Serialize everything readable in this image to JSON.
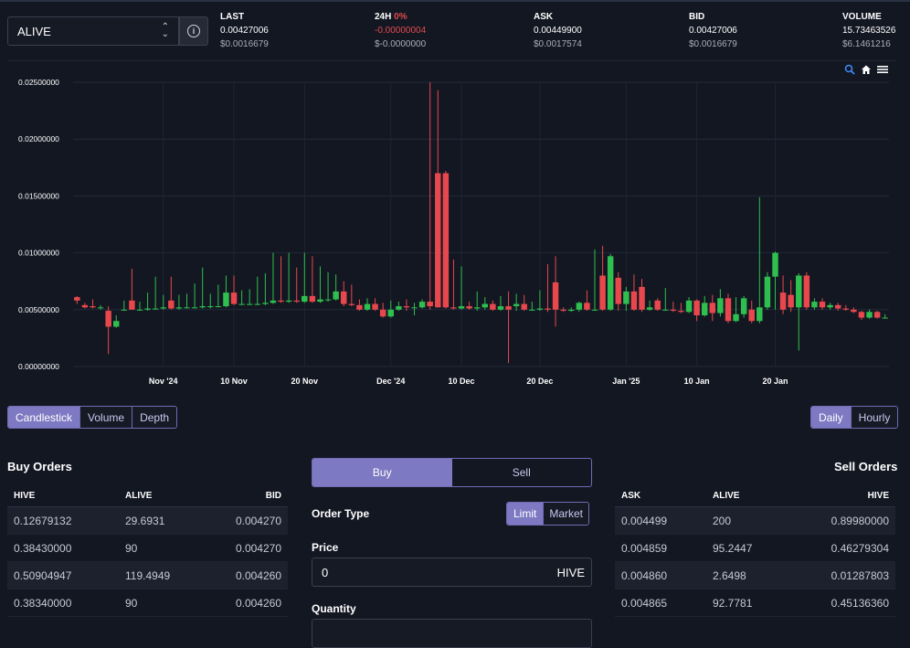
{
  "header": {
    "pair": "ALIVE",
    "last": {
      "label": "LAST",
      "value": "0.00427006",
      "usd": "$0.0016679"
    },
    "change": {
      "label": "24H",
      "pct": "0%",
      "value": "-0.00000004",
      "usd": "$-0.0000000"
    },
    "ask": {
      "label": "ASK",
      "value": "0.00449900",
      "usd": "$0.0017574"
    },
    "bid": {
      "label": "BID",
      "value": "0.00427006",
      "usd": "$0.0016679"
    },
    "volume": {
      "label": "VOLUME",
      "value": "15.73463526",
      "usd": "$6.1461216"
    }
  },
  "chart_tools": [
    "zoom-icon",
    "home-icon",
    "menu-icon"
  ],
  "chart_data": {
    "type": "candlestick",
    "y_ticks": [
      "0.02500000",
      "0.02000000",
      "0.01500000",
      "0.01000000",
      "0.00500000",
      "0.00000000"
    ],
    "ylim": [
      0,
      0.025
    ],
    "x_ticks": [
      "Nov '24",
      "10 Nov",
      "20 Nov",
      "Dec '24",
      "10 Dec",
      "20 Dec",
      "Jan '25",
      "10 Jan",
      "20 Jan"
    ],
    "colors": {
      "up": "#2fbf4f",
      "down": "#e8484d"
    },
    "candles": [
      [
        0.0061,
        0.0058,
        0.0062,
        0.0055
      ],
      [
        0.0054,
        0.0052,
        0.0056,
        0.0051
      ],
      [
        0.0053,
        0.0052,
        0.0059,
        0.0051
      ],
      [
        0.0052,
        0.0052,
        0.0054,
        0.005
      ],
      [
        0.0049,
        0.0035,
        0.0053,
        0.0011
      ],
      [
        0.0035,
        0.004,
        0.0045,
        0.0034
      ],
      [
        0.005,
        0.005,
        0.0058,
        0.0049
      ],
      [
        0.0058,
        0.005,
        0.0086,
        0.005
      ],
      [
        0.005,
        0.005,
        0.0057,
        0.0049
      ],
      [
        0.005,
        0.0051,
        0.0065,
        0.0049
      ],
      [
        0.0051,
        0.0051,
        0.0079,
        0.005
      ],
      [
        0.0051,
        0.0052,
        0.0063,
        0.005
      ],
      [
        0.0058,
        0.0051,
        0.0079,
        0.005
      ],
      [
        0.0051,
        0.0052,
        0.0063,
        0.005
      ],
      [
        0.0052,
        0.0052,
        0.0064,
        0.0051
      ],
      [
        0.0052,
        0.0052,
        0.0073,
        0.0051
      ],
      [
        0.0052,
        0.0053,
        0.0087,
        0.0051
      ],
      [
        0.0053,
        0.0053,
        0.0064,
        0.0051
      ],
      [
        0.0053,
        0.0053,
        0.0072,
        0.0052
      ],
      [
        0.0053,
        0.0065,
        0.008,
        0.0052
      ],
      [
        0.0065,
        0.0055,
        0.008,
        0.0054
      ],
      [
        0.0055,
        0.0055,
        0.0067,
        0.0054
      ],
      [
        0.0055,
        0.0055,
        0.0068,
        0.0054
      ],
      [
        0.0055,
        0.0055,
        0.0079,
        0.0054
      ],
      [
        0.0055,
        0.0056,
        0.0082,
        0.0054
      ],
      [
        0.0056,
        0.0058,
        0.01,
        0.0055
      ],
      [
        0.0058,
        0.0057,
        0.0097,
        0.0056
      ],
      [
        0.0057,
        0.0058,
        0.01,
        0.0056
      ],
      [
        0.0058,
        0.0057,
        0.0087,
        0.0056
      ],
      [
        0.0057,
        0.0062,
        0.01,
        0.0056
      ],
      [
        0.0062,
        0.0057,
        0.0097,
        0.0056
      ],
      [
        0.0057,
        0.0059,
        0.0088,
        0.0056
      ],
      [
        0.0059,
        0.0059,
        0.0083,
        0.0057
      ],
      [
        0.0059,
        0.0066,
        0.0081,
        0.0058
      ],
      [
        0.0066,
        0.0055,
        0.0075,
        0.0053
      ],
      [
        0.0055,
        0.0054,
        0.0072,
        0.0053
      ],
      [
        0.0054,
        0.005,
        0.0059,
        0.0049
      ],
      [
        0.005,
        0.0055,
        0.006,
        0.0049
      ],
      [
        0.0055,
        0.005,
        0.006,
        0.0049
      ],
      [
        0.005,
        0.0044,
        0.0056,
        0.0043
      ],
      [
        0.0044,
        0.005,
        0.0058,
        0.0043
      ],
      [
        0.005,
        0.0053,
        0.0057,
        0.0049
      ],
      [
        0.0053,
        0.0052,
        0.0059,
        0.0049
      ],
      [
        0.0052,
        0.0052,
        0.0056,
        0.0045
      ],
      [
        0.0052,
        0.0057,
        0.0059,
        0.0051
      ],
      [
        0.0057,
        0.0053,
        0.025,
        0.005
      ],
      [
        0.017,
        0.0052,
        0.0243,
        0.0052
      ],
      [
        0.017,
        0.0052,
        0.0172,
        0.0051
      ],
      [
        0.0052,
        0.0051,
        0.0094,
        0.005
      ],
      [
        0.0051,
        0.0053,
        0.0088,
        0.005
      ],
      [
        0.0053,
        0.0051,
        0.0057,
        0.005
      ],
      [
        0.0051,
        0.0052,
        0.0066,
        0.0049
      ],
      [
        0.0052,
        0.0055,
        0.0061,
        0.005
      ],
      [
        0.0055,
        0.005,
        0.0058,
        0.0049
      ],
      [
        0.005,
        0.0053,
        0.0062,
        0.0049
      ],
      [
        0.0053,
        0.005,
        0.0066,
        0.0003
      ],
      [
        0.0053,
        0.0055,
        0.0064,
        0.0049
      ],
      [
        0.0055,
        0.005,
        0.0063,
        0.0049
      ],
      [
        0.005,
        0.005,
        0.0057,
        0.0049
      ],
      [
        0.005,
        0.0051,
        0.0067,
        0.0049
      ],
      [
        0.0051,
        0.005,
        0.009,
        0.0048
      ],
      [
        0.0074,
        0.005,
        0.0097,
        0.0035
      ],
      [
        0.005,
        0.0049,
        0.0052,
        0.0048
      ],
      [
        0.0049,
        0.005,
        0.0052,
        0.0048
      ],
      [
        0.005,
        0.0056,
        0.0057,
        0.0048
      ],
      [
        0.0056,
        0.005,
        0.0067,
        0.0049
      ],
      [
        0.005,
        0.005,
        0.0103,
        0.0049
      ],
      [
        0.008,
        0.005,
        0.0106,
        0.0049
      ],
      [
        0.005,
        0.0097,
        0.0099,
        0.0049
      ],
      [
        0.0078,
        0.0055,
        0.0083,
        0.0049
      ],
      [
        0.0055,
        0.0066,
        0.007,
        0.0049
      ],
      [
        0.0066,
        0.005,
        0.0081,
        0.0049
      ],
      [
        0.007,
        0.005,
        0.0077,
        0.0048
      ],
      [
        0.005,
        0.0052,
        0.0058,
        0.0049
      ],
      [
        0.0058,
        0.005,
        0.006,
        0.0049
      ],
      [
        0.005,
        0.005,
        0.0069,
        0.0049
      ],
      [
        0.005,
        0.0049,
        0.0057,
        0.0048
      ],
      [
        0.0049,
        0.0048,
        0.0056,
        0.0047
      ],
      [
        0.0048,
        0.0058,
        0.0061,
        0.0047
      ],
      [
        0.0058,
        0.0045,
        0.0059,
        0.004
      ],
      [
        0.0045,
        0.0056,
        0.0062,
        0.0044
      ],
      [
        0.0056,
        0.0047,
        0.0063,
        0.004
      ],
      [
        0.0047,
        0.006,
        0.0068,
        0.0044
      ],
      [
        0.006,
        0.004,
        0.0064,
        0.0038
      ],
      [
        0.004,
        0.0046,
        0.0061,
        0.0039
      ],
      [
        0.0046,
        0.006,
        0.0062,
        0.0043
      ],
      [
        0.005,
        0.004,
        0.0058,
        0.0038
      ],
      [
        0.004,
        0.0052,
        0.0149,
        0.0038
      ],
      [
        0.0052,
        0.0079,
        0.0083,
        0.005
      ],
      [
        0.0079,
        0.01,
        0.0101,
        0.005
      ],
      [
        0.0065,
        0.005,
        0.008,
        0.0046
      ],
      [
        0.0063,
        0.0052,
        0.0076,
        0.0048
      ],
      [
        0.0052,
        0.008,
        0.0082,
        0.0014
      ],
      [
        0.008,
        0.0052,
        0.0083,
        0.005
      ],
      [
        0.0052,
        0.0057,
        0.006,
        0.005
      ],
      [
        0.0057,
        0.0052,
        0.006,
        0.005
      ],
      [
        0.0052,
        0.0054,
        0.0056,
        0.005
      ],
      [
        0.0054,
        0.0051,
        0.0056,
        0.0049
      ],
      [
        0.0051,
        0.005,
        0.0054,
        0.0049
      ],
      [
        0.005,
        0.0048,
        0.0052,
        0.0047
      ],
      [
        0.0048,
        0.0043,
        0.0049,
        0.0041
      ],
      [
        0.0043,
        0.0048,
        0.005,
        0.0042
      ],
      [
        0.0048,
        0.0043,
        0.0049,
        0.0042
      ],
      [
        0.0043,
        0.0043,
        0.0046,
        0.0042
      ]
    ]
  },
  "view_tabs": [
    "Candlestick",
    "Volume",
    "Depth"
  ],
  "interval_tabs": [
    "Daily",
    "Hourly"
  ],
  "buy_orders": {
    "title": "Buy Orders",
    "headers": [
      "HIVE",
      "ALIVE",
      "BID"
    ],
    "rows": [
      [
        "0.12679132",
        "29.6931",
        "0.004270"
      ],
      [
        "0.38430000",
        "90",
        "0.004270"
      ],
      [
        "0.50904947",
        "119.4949",
        "0.004260"
      ],
      [
        "0.38340000",
        "90",
        "0.004260"
      ]
    ]
  },
  "sell_orders": {
    "title": "Sell Orders",
    "headers": [
      "ASK",
      "ALIVE",
      "HIVE"
    ],
    "rows": [
      [
        "0.004499",
        "200",
        "0.89980000"
      ],
      [
        "0.004859",
        "95.2447",
        "0.46279304"
      ],
      [
        "0.004860",
        "2.6498",
        "0.01287803"
      ],
      [
        "0.004865",
        "92.7781",
        "0.45136360"
      ]
    ]
  },
  "trade": {
    "tabs": [
      "Buy",
      "Sell"
    ],
    "order_type_label": "Order Type",
    "order_types": [
      "Limit",
      "Market"
    ],
    "price_label": "Price",
    "price_value": "0",
    "price_unit": "HIVE",
    "quantity_label": "Quantity"
  }
}
